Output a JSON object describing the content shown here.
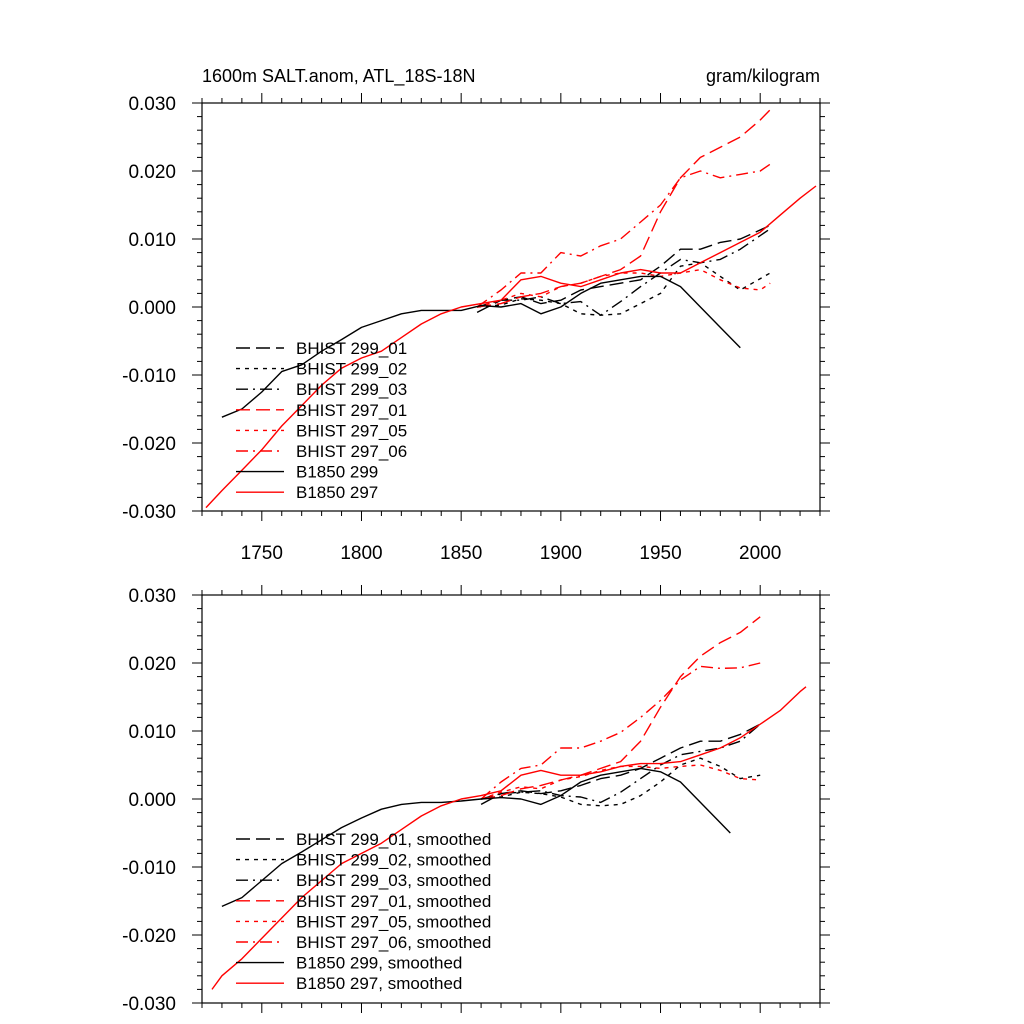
{
  "figure": {
    "title": "1600m SALT.anom, ATL_18S-18N",
    "units": "gram/kilogram"
  },
  "styles": {
    "black": "#000000",
    "red": "#ff0000",
    "dash": "14,6",
    "dot": "4,5",
    "dashdot": "12,5,2,5",
    "solid": ""
  },
  "chart_data": [
    {
      "type": "line",
      "title": "1600m SALT.anom, ATL_18S-18N",
      "units": "gram/kilogram",
      "xlim": [
        1720,
        2030
      ],
      "ylim": [
        -0.03,
        0.03
      ],
      "xticks": [
        1750,
        1800,
        1850,
        1900,
        1950,
        2000
      ],
      "xticklabels": [
        "1750",
        "1800",
        "1850",
        "1900",
        "1950",
        "2000"
      ],
      "yticks": [
        -0.03,
        -0.02,
        -0.01,
        0.0,
        0.01,
        0.02,
        0.03
      ],
      "yticklabels": [
        "-0.030",
        "-0.020",
        "-0.010",
        "0.000",
        "0.010",
        "0.020",
        "0.030"
      ],
      "legend_position": "lower-left",
      "series": [
        {
          "name": "BHIST 299_01",
          "color": "#000000",
          "style": "dash",
          "x": [
            1858,
            1870,
            1880,
            1890,
            1900,
            1910,
            1920,
            1930,
            1940,
            1950,
            1960,
            1970,
            1980,
            1990,
            2005
          ],
          "y": [
            -0.0008,
            0.001,
            0.0015,
            0.0005,
            0.001,
            0.0025,
            0.003,
            0.0035,
            0.004,
            0.006,
            0.0085,
            0.0085,
            0.0095,
            0.01,
            0.012
          ]
        },
        {
          "name": "BHIST 299_02",
          "color": "#000000",
          "style": "dot",
          "x": [
            1858,
            1870,
            1880,
            1890,
            1900,
            1910,
            1920,
            1930,
            1940,
            1950,
            1960,
            1970,
            1980,
            1990,
            2005
          ],
          "y": [
            0.0,
            0.0003,
            0.0012,
            0.001,
            0.0005,
            -0.001,
            -0.0012,
            -0.001,
            0.0005,
            0.002,
            0.006,
            0.0065,
            0.0045,
            0.0025,
            0.005
          ]
        },
        {
          "name": "BHIST 299_03",
          "color": "#000000",
          "style": "dashdot",
          "x": [
            1858,
            1870,
            1880,
            1890,
            1900,
            1910,
            1920,
            1930,
            1940,
            1950,
            1960,
            1970,
            1980,
            1990,
            2005
          ],
          "y": [
            0.0,
            0.001,
            0.001,
            0.0015,
            0.0005,
            0.0008,
            -0.0012,
            0.0008,
            0.003,
            0.005,
            0.007,
            0.0065,
            0.007,
            0.0085,
            0.0115
          ]
        },
        {
          "name": "BHIST 297_01",
          "color": "#ff0000",
          "style": "dash",
          "x": [
            1858,
            1870,
            1880,
            1890,
            1900,
            1910,
            1920,
            1930,
            1940,
            1950,
            1960,
            1970,
            1980,
            1990,
            2000,
            2005
          ],
          "y": [
            0.0,
            0.0005,
            0.0015,
            0.002,
            0.003,
            0.0035,
            0.0045,
            0.0055,
            0.0075,
            0.014,
            0.019,
            0.022,
            0.0235,
            0.025,
            0.0275,
            0.029
          ]
        },
        {
          "name": "BHIST 297_05",
          "color": "#ff0000",
          "style": "dot",
          "x": [
            1858,
            1870,
            1880,
            1890,
            1900,
            1910,
            1920,
            1930,
            1940,
            1950,
            1960,
            1970,
            1980,
            1990,
            2000,
            2005
          ],
          "y": [
            0.0,
            0.001,
            0.002,
            0.0015,
            0.003,
            0.0035,
            0.0045,
            0.005,
            0.005,
            0.0045,
            0.005,
            0.0055,
            0.004,
            0.0028,
            0.0025,
            0.0035
          ]
        },
        {
          "name": "BHIST 297_06",
          "color": "#ff0000",
          "style": "dashdot",
          "x": [
            1858,
            1870,
            1880,
            1890,
            1900,
            1910,
            1920,
            1930,
            1940,
            1950,
            1960,
            1970,
            1980,
            1990,
            2000,
            2005
          ],
          "y": [
            0.0,
            0.0025,
            0.005,
            0.005,
            0.008,
            0.0075,
            0.009,
            0.01,
            0.0125,
            0.015,
            0.019,
            0.02,
            0.019,
            0.0195,
            0.02,
            0.021
          ]
        },
        {
          "name": "B1850 299",
          "color": "#000000",
          "style": "solid",
          "x": [
            1730,
            1740,
            1750,
            1760,
            1770,
            1780,
            1790,
            1800,
            1810,
            1820,
            1830,
            1840,
            1850,
            1860,
            1870,
            1880,
            1890,
            1900,
            1910,
            1920,
            1930,
            1940,
            1950,
            1960,
            1970,
            1980,
            1990
          ],
          "y": [
            -0.0162,
            -0.015,
            -0.0125,
            -0.0095,
            -0.0085,
            -0.0065,
            -0.0048,
            -0.003,
            -0.002,
            -0.001,
            -0.0005,
            -0.0005,
            -0.0005,
            0.0002,
            0.0,
            0.0005,
            -0.001,
            0.0,
            0.002,
            0.0035,
            0.004,
            0.0045,
            0.0045,
            0.003,
            0.0,
            -0.003,
            -0.006
          ]
        },
        {
          "name": "B1850 297",
          "color": "#ff0000",
          "style": "solid",
          "x": [
            1722,
            1730,
            1740,
            1750,
            1760,
            1770,
            1780,
            1790,
            1800,
            1810,
            1820,
            1830,
            1840,
            1850,
            1860,
            1870,
            1880,
            1890,
            1900,
            1910,
            1920,
            1930,
            1940,
            1950,
            1960,
            1970,
            1980,
            1990,
            2000,
            2010,
            2020,
            2028
          ],
          "y": [
            -0.0295,
            -0.027,
            -0.024,
            -0.021,
            -0.0175,
            -0.0145,
            -0.0115,
            -0.009,
            -0.0075,
            -0.0065,
            -0.0045,
            -0.0025,
            -0.001,
            0.0,
            0.0005,
            0.001,
            0.004,
            0.0045,
            0.0035,
            0.003,
            0.004,
            0.005,
            0.0055,
            0.005,
            0.005,
            0.0065,
            0.008,
            0.0095,
            0.011,
            0.0135,
            0.016,
            0.0178
          ]
        }
      ]
    },
    {
      "type": "line",
      "xlim": [
        1720,
        2030
      ],
      "ylim": [
        -0.03,
        0.03
      ],
      "xticks": [
        1750,
        1800,
        1850,
        1900,
        1950,
        2000
      ],
      "yticks": [
        -0.03,
        -0.02,
        -0.01,
        0.0,
        0.01,
        0.02,
        0.03
      ],
      "yticklabels": [
        "-0.030",
        "-0.020",
        "-0.010",
        "0.000",
        "0.010",
        "0.020",
        "0.030"
      ],
      "legend_position": "lower-left",
      "series": [
        {
          "name": "BHIST 299_01, smoothed",
          "color": "#000000",
          "style": "dash",
          "x": [
            1860,
            1870,
            1880,
            1890,
            1900,
            1910,
            1920,
            1930,
            1940,
            1950,
            1960,
            1970,
            1980,
            1990,
            2000
          ],
          "y": [
            -0.0008,
            0.0008,
            0.0012,
            0.0008,
            0.0012,
            0.002,
            0.003,
            0.0035,
            0.0045,
            0.006,
            0.0075,
            0.0085,
            0.0085,
            0.0095,
            0.011
          ]
        },
        {
          "name": "BHIST 299_02, smoothed",
          "color": "#000000",
          "style": "dot",
          "x": [
            1860,
            1870,
            1880,
            1890,
            1900,
            1910,
            1920,
            1930,
            1940,
            1950,
            1960,
            1970,
            1980,
            1990,
            2000
          ],
          "y": [
            0.0,
            0.0003,
            0.001,
            0.0008,
            0.0003,
            -0.0008,
            -0.001,
            -0.0008,
            0.0005,
            0.0025,
            0.005,
            0.006,
            0.0048,
            0.003,
            0.0035
          ]
        },
        {
          "name": "BHIST 299_03, smoothed",
          "color": "#000000",
          "style": "dashdot",
          "x": [
            1860,
            1870,
            1880,
            1890,
            1900,
            1910,
            1920,
            1930,
            1940,
            1950,
            1960,
            1970,
            1980,
            1990,
            2000
          ],
          "y": [
            0.0,
            0.0008,
            0.001,
            0.0012,
            0.0005,
            0.0003,
            -0.0005,
            0.001,
            0.003,
            0.005,
            0.0065,
            0.007,
            0.0075,
            0.0085,
            0.011
          ]
        },
        {
          "name": "BHIST 297_01, smoothed",
          "color": "#ff0000",
          "style": "dash",
          "x": [
            1860,
            1870,
            1880,
            1890,
            1900,
            1910,
            1920,
            1930,
            1940,
            1950,
            1960,
            1970,
            1980,
            1990,
            2000
          ],
          "y": [
            0.0,
            0.0005,
            0.0015,
            0.002,
            0.0028,
            0.0035,
            0.0045,
            0.0055,
            0.0085,
            0.0135,
            0.018,
            0.021,
            0.023,
            0.0245,
            0.0268
          ]
        },
        {
          "name": "BHIST 297_05, smoothed",
          "color": "#ff0000",
          "style": "dot",
          "x": [
            1860,
            1870,
            1880,
            1890,
            1900,
            1910,
            1920,
            1930,
            1940,
            1950,
            1960,
            1970,
            1980,
            1990,
            2000
          ],
          "y": [
            0.0,
            0.001,
            0.0018,
            0.0015,
            0.0028,
            0.0033,
            0.0042,
            0.0048,
            0.0048,
            0.0045,
            0.0048,
            0.005,
            0.0042,
            0.003,
            0.0028
          ]
        },
        {
          "name": "BHIST 297_06, smoothed",
          "color": "#ff0000",
          "style": "dashdot",
          "x": [
            1860,
            1870,
            1880,
            1890,
            1900,
            1910,
            1920,
            1930,
            1940,
            1950,
            1960,
            1970,
            1980,
            1990,
            2000
          ],
          "y": [
            0.0,
            0.0025,
            0.0045,
            0.005,
            0.0075,
            0.0075,
            0.0085,
            0.0098,
            0.012,
            0.0145,
            0.0175,
            0.0195,
            0.0192,
            0.0193,
            0.02
          ]
        },
        {
          "name": "B1850 299, smoothed",
          "color": "#000000",
          "style": "solid",
          "x": [
            1730,
            1740,
            1750,
            1760,
            1770,
            1780,
            1790,
            1800,
            1810,
            1820,
            1830,
            1840,
            1850,
            1860,
            1870,
            1880,
            1890,
            1900,
            1910,
            1920,
            1930,
            1940,
            1950,
            1960,
            1970,
            1980,
            1985
          ],
          "y": [
            -0.0158,
            -0.0145,
            -0.012,
            -0.0095,
            -0.0078,
            -0.006,
            -0.0042,
            -0.0028,
            -0.0015,
            -0.0008,
            -0.0005,
            -0.0005,
            -0.0003,
            0.0,
            0.0002,
            0.0,
            -0.0008,
            0.0005,
            0.0025,
            0.0035,
            0.004,
            0.0045,
            0.004,
            0.0025,
            -0.0005,
            -0.0035,
            -0.005
          ]
        },
        {
          "name": "B1850 297, smoothed",
          "color": "#ff0000",
          "style": "solid",
          "x": [
            1725,
            1730,
            1740,
            1750,
            1760,
            1770,
            1780,
            1790,
            1800,
            1810,
            1820,
            1830,
            1840,
            1850,
            1860,
            1870,
            1880,
            1890,
            1900,
            1910,
            1920,
            1930,
            1940,
            1950,
            1960,
            1970,
            1980,
            1990,
            2000,
            2010,
            2020,
            2023
          ],
          "y": [
            -0.028,
            -0.026,
            -0.0235,
            -0.0205,
            -0.0175,
            -0.0145,
            -0.012,
            -0.0095,
            -0.008,
            -0.0065,
            -0.0045,
            -0.0025,
            -0.001,
            0.0,
            0.0005,
            0.0012,
            0.0035,
            0.0042,
            0.0035,
            0.0035,
            0.004,
            0.0048,
            0.0052,
            0.0052,
            0.0055,
            0.0065,
            0.0075,
            0.009,
            0.011,
            0.013,
            0.0158,
            0.0165
          ]
        }
      ]
    }
  ]
}
